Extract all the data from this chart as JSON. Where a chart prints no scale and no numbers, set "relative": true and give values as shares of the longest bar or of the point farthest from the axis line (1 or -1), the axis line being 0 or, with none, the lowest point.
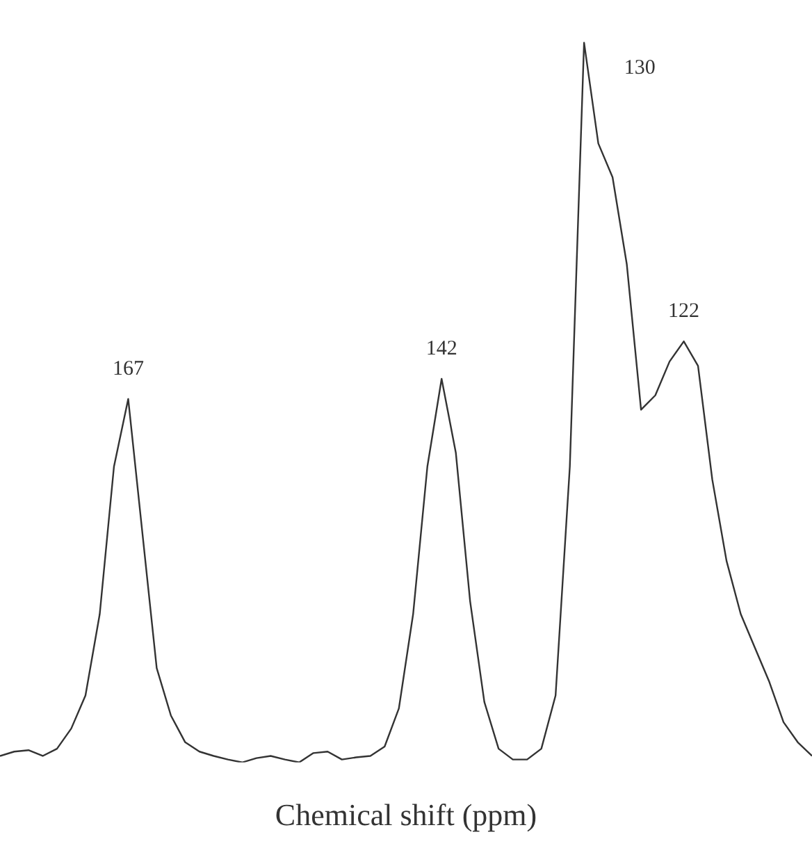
{
  "chart_data": {
    "type": "line",
    "relative": true,
    "xlabel": "Chemical shift (ppm)",
    "marker": "none",
    "categories": [
      null,
      null,
      null,
      null,
      null,
      null,
      null,
      null,
      null,
      null,
      null,
      null,
      null,
      null,
      null,
      null,
      null,
      null,
      null,
      null,
      null,
      null,
      null,
      null,
      null,
      null,
      null,
      null,
      null,
      null,
      null,
      null,
      null,
      null,
      null,
      null,
      null,
      null,
      null,
      null,
      null,
      null,
      null,
      null,
      null,
      null,
      null,
      null,
      null,
      null,
      null,
      null,
      null,
      null,
      null,
      null,
      null,
      null
    ],
    "series": [
      {
        "color": "#333333",
        "values": [
          0.009,
          0.015,
          0.017,
          0.009,
          0.019,
          0.047,
          0.093,
          0.206,
          0.411,
          0.505,
          0.318,
          0.131,
          0.065,
          0.028,
          0.015,
          0.009,
          0.004,
          0,
          0.006,
          0.009,
          0.004,
          0,
          0.013,
          0.015,
          0.004,
          0.007,
          0.009,
          0.022,
          0.075,
          0.206,
          0.411,
          0.533,
          0.43,
          0.224,
          0.084,
          0.019,
          0.004,
          0.004,
          0.019,
          0.093,
          0.411,
          1,
          0.86,
          0.813,
          0.692,
          0.49,
          0.51,
          0.557,
          0.585,
          0.551,
          0.393,
          0.28,
          0.206,
          0.159,
          0.112,
          0.056,
          0.028,
          0.009
        ]
      }
    ],
    "annotations": [
      "167",
      "142",
      "130",
      "122"
    ]
  }
}
